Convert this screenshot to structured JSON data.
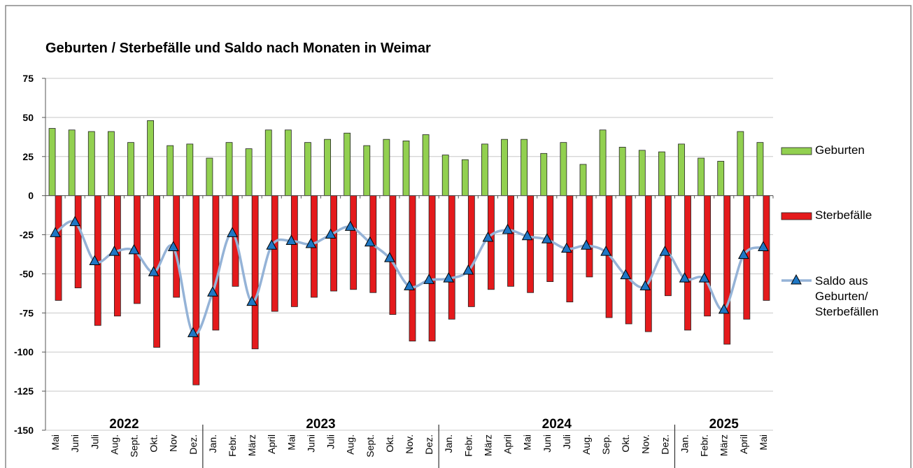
{
  "chart_data": {
    "type": "bar_line",
    "title": "Geburten / Sterbefälle und Saldo nach Monaten in Weimar",
    "categories": [
      "Mai",
      "Juni",
      "Juli",
      "Aug.",
      "Sept.",
      "Okt.",
      "Nov",
      "Dez.",
      "Jan.",
      "Febr.",
      "März",
      "April",
      "Mai",
      "Juni",
      "Juli",
      "Aug.",
      "Sept.",
      "Okt.",
      "Nov.",
      "Dez.",
      "Jan.",
      "Febr.",
      "März",
      "April",
      "Mai",
      "Juni",
      "Juli",
      "Aug.",
      "Sep.",
      "Okt.",
      "Nov.",
      "Dez.",
      "Jan.",
      "Febr.",
      "März",
      "April",
      "Mai"
    ],
    "year_groups": [
      {
        "label": "2022",
        "span": 8
      },
      {
        "label": "2023",
        "span": 12
      },
      {
        "label": "2024",
        "span": 12
      },
      {
        "label": "2025",
        "span": 5
      }
    ],
    "series": [
      {
        "name": "Geburten",
        "kind": "bar",
        "color": "#92d050",
        "values": [
          43,
          42,
          41,
          41,
          34,
          48,
          32,
          33,
          24,
          34,
          30,
          42,
          42,
          34,
          36,
          40,
          32,
          36,
          35,
          39,
          26,
          23,
          33,
          36,
          36,
          27,
          34,
          20,
          42,
          31,
          29,
          28,
          33,
          24,
          22,
          41,
          34
        ]
      },
      {
        "name": "Sterbefälle",
        "kind": "bar",
        "color": "#e41a1c",
        "values": [
          -67,
          -59,
          -83,
          -77,
          -69,
          -97,
          -65,
          -121,
          -86,
          -58,
          -98,
          -74,
          -71,
          -65,
          -61,
          -60,
          -62,
          -76,
          -93,
          -93,
          -79,
          -71,
          -60,
          -58,
          -62,
          -55,
          -68,
          -52,
          -78,
          -82,
          -87,
          -64,
          -86,
          -77,
          -95,
          -79,
          -67
        ]
      },
      {
        "name": "Saldo aus Geburten/ Sterbefällen",
        "kind": "line",
        "color": "#95b3d7",
        "marker_color": "#1f77c4",
        "values": [
          -24,
          -17,
          -42,
          -36,
          -35,
          -49,
          -33,
          -88,
          -62,
          -24,
          -68,
          -32,
          -29,
          -31,
          -25,
          -20,
          -30,
          -40,
          -58,
          -54,
          -53,
          -48,
          -27,
          -22,
          -26,
          -28,
          -34,
          -32,
          -36,
          -51,
          -58,
          -36,
          -53,
          -53,
          -73,
          -38,
          -33
        ]
      }
    ],
    "ylim": [
      -150,
      75
    ],
    "yticks": [
      -150,
      -125,
      -100,
      -75,
      -50,
      -25,
      0,
      25,
      50,
      75
    ],
    "grid": true
  }
}
